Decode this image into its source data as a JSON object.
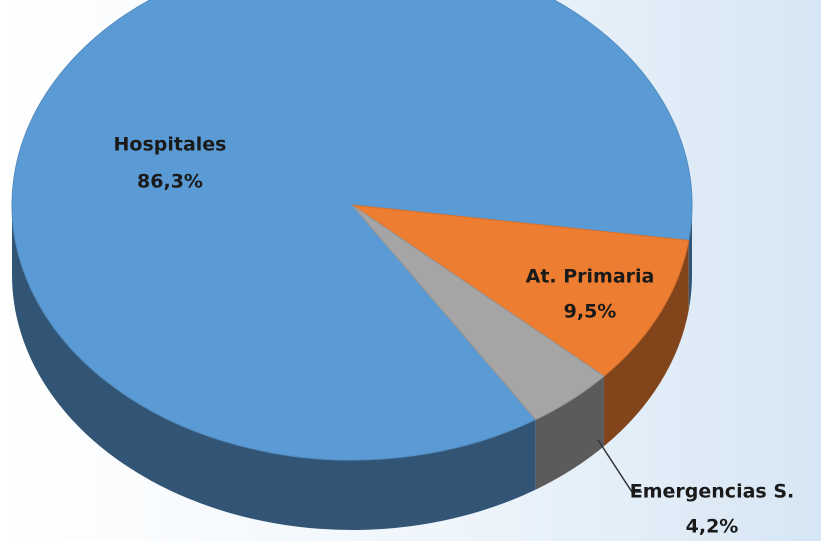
{
  "chart_data": {
    "type": "pie",
    "categories": [
      "Hospitales",
      "At. Primaria",
      "Emergencias S."
    ],
    "values": [
      86.3,
      9.5,
      4.2
    ],
    "value_labels": [
      "86,3%",
      "9,5%",
      "4,2%"
    ],
    "colors": [
      "#5b9bd5",
      "#ed7d31",
      "#a5a5a5"
    ]
  }
}
